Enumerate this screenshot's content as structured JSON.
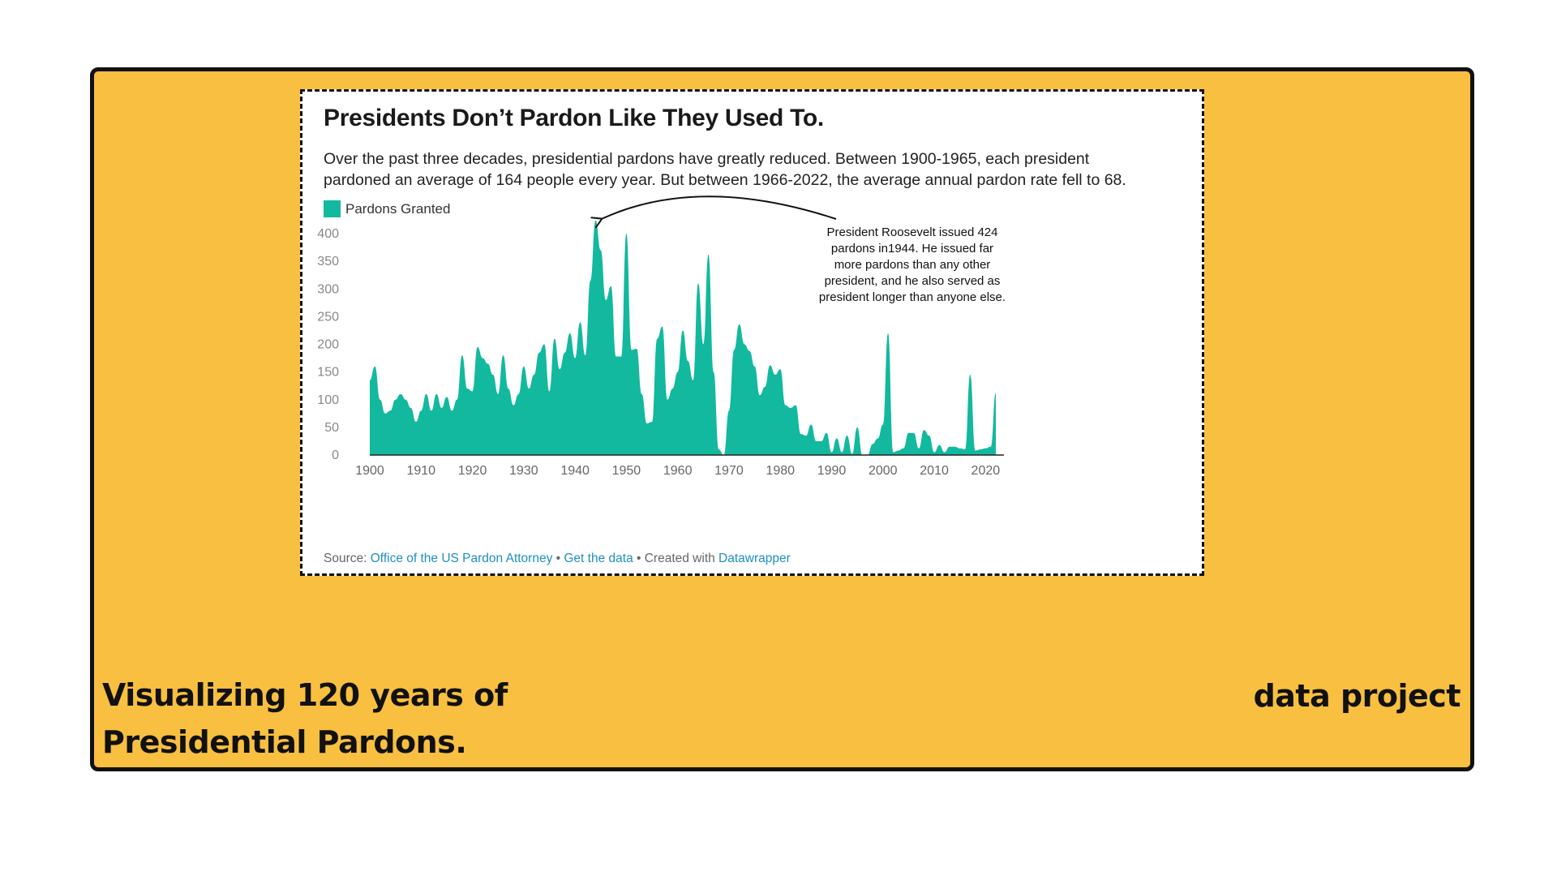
{
  "chart_data": {
    "type": "area",
    "title": "Presidents Don’t Pardon Like They Used To.",
    "subtitle": [
      "Over the past three decades, presidential pardons have greatly reduced. Between 1900-1965, each president",
      "pardoned an average of 164 people every year. But between 1966-2022, the average annual pardon rate fell to 68."
    ],
    "legend": {
      "position": "top-left",
      "entries": [
        {
          "name": "Pardons Granted",
          "color": "#12b99e"
        }
      ]
    },
    "xlim": [
      1900,
      2022
    ],
    "ylim": [
      0,
      400
    ],
    "x_ticks": [
      1900,
      1910,
      1920,
      1930,
      1940,
      1950,
      1960,
      1970,
      1980,
      1990,
      2000,
      2010,
      2020
    ],
    "y_ticks": [
      0,
      50,
      100,
      150,
      200,
      250,
      300,
      350,
      400
    ],
    "grid": false,
    "series": [
      {
        "name": "Pardons Granted",
        "color": "#12b99e",
        "x": [
          1900,
          1901,
          1902,
          1903,
          1904,
          1905,
          1906,
          1907,
          1908,
          1909,
          1910,
          1911,
          1912,
          1913,
          1914,
          1915,
          1916,
          1917,
          1918,
          1919,
          1920,
          1921,
          1922,
          1923,
          1924,
          1925,
          1926,
          1927,
          1928,
          1929,
          1930,
          1931,
          1932,
          1933,
          1934,
          1935,
          1936,
          1937,
          1938,
          1939,
          1940,
          1941,
          1942,
          1943,
          1944,
          1945,
          1946,
          1947,
          1948,
          1949,
          1950,
          1951,
          1952,
          1953,
          1954,
          1955,
          1956,
          1957,
          1958,
          1959,
          1960,
          1961,
          1962,
          1963,
          1964,
          1965,
          1966,
          1967,
          1968,
          1969,
          1970,
          1971,
          1972,
          1973,
          1974,
          1975,
          1976,
          1977,
          1978,
          1979,
          1980,
          1981,
          1982,
          1983,
          1984,
          1985,
          1986,
          1987,
          1988,
          1989,
          1990,
          1991,
          1992,
          1993,
          1994,
          1995,
          1996,
          1997,
          1998,
          1999,
          2000,
          2001,
          2002,
          2003,
          2004,
          2005,
          2006,
          2007,
          2008,
          2009,
          2010,
          2011,
          2012,
          2013,
          2014,
          2015,
          2016,
          2017,
          2018,
          2019,
          2020,
          2021,
          2022
        ],
        "values": [
          135,
          160,
          100,
          75,
          80,
          100,
          110,
          100,
          85,
          60,
          80,
          110,
          80,
          110,
          85,
          105,
          80,
          100,
          180,
          120,
          115,
          195,
          175,
          165,
          145,
          110,
          180,
          120,
          90,
          110,
          160,
          120,
          145,
          185,
          200,
          115,
          210,
          155,
          185,
          220,
          175,
          240,
          180,
          315,
          424,
          370,
          280,
          305,
          178,
          178,
          400,
          190,
          192,
          110,
          57,
          60,
          210,
          232,
          100,
          120,
          150,
          225,
          170,
          135,
          310,
          200,
          362,
          150,
          10,
          0,
          80,
          190,
          236,
          200,
          188,
          160,
          108,
          123,
          162,
          145,
          155,
          90,
          85,
          90,
          38,
          35,
          55,
          25,
          25,
          40,
          5,
          30,
          5,
          35,
          2,
          50,
          0,
          0,
          20,
          30,
          55,
          220,
          5,
          8,
          12,
          40,
          40,
          12,
          45,
          35,
          5,
          18,
          5,
          15,
          15,
          12,
          10,
          145,
          8,
          10,
          12,
          15,
          112
        ]
      }
    ],
    "annotation": {
      "text": [
        "President Roosevelt issued 424",
        "pardons in1944. He issued far",
        "more pardons than any other",
        "president, and he also served as",
        "president longer than anyone else."
      ],
      "target": {
        "x": 1944,
        "y": 424
      }
    },
    "source": {
      "prefix": "Source: ",
      "source_link": "Office of the US Pardon Attorney",
      "sep1": " • ",
      "data_link": "Get the data",
      "sep2": " • Created with ",
      "tool_link": "Datawrapper"
    }
  },
  "footer": {
    "title_line1": "Visualizing 120 years of",
    "title_line2": "Presidential Pardons.",
    "tag": "data project"
  },
  "colors": {
    "background": "#f8bf40",
    "border": "#111111",
    "area": "#12b99e",
    "link": "#1d8fc4"
  }
}
